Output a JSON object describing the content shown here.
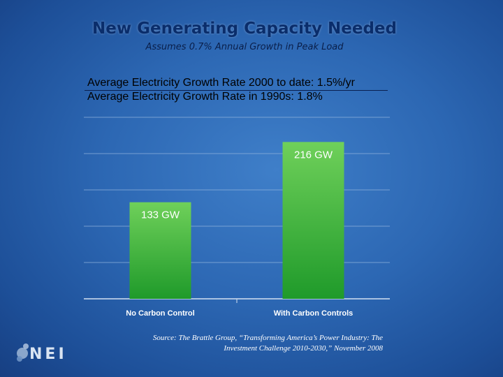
{
  "slide": {
    "title": "New Generating Capacity Needed",
    "subtitle": "Assumes 0.7% Annual Growth in Peak Load",
    "stats": [
      "Average Electricity Growth Rate 2000 to date: 1.5%/yr",
      "Average Electricity Growth Rate in 1990s: 1.8%"
    ],
    "source_line1": "Source: The Brattle Group, “Transforming America’s Power Industry: The",
    "source_line2": "Investment Challenge 2010-2030,” November 2008",
    "logo_text": "NEI",
    "logo_icon": "nei-logo-icon"
  },
  "colors": {
    "bar_top": "#6fd05a",
    "bar_bottom": "#1f9a2a",
    "label_text": "#ffffff",
    "gridline": "#8fb2dc"
  },
  "chart_data": {
    "type": "bar",
    "categories": [
      "No Carbon Control",
      "With Carbon Controls"
    ],
    "values": [
      133,
      216
    ],
    "data_labels": [
      "133 GW",
      "216 GW"
    ],
    "ylim": [
      0,
      250
    ],
    "grid": true,
    "legend": "none",
    "title": "",
    "xlabel": "",
    "ylabel": ""
  }
}
